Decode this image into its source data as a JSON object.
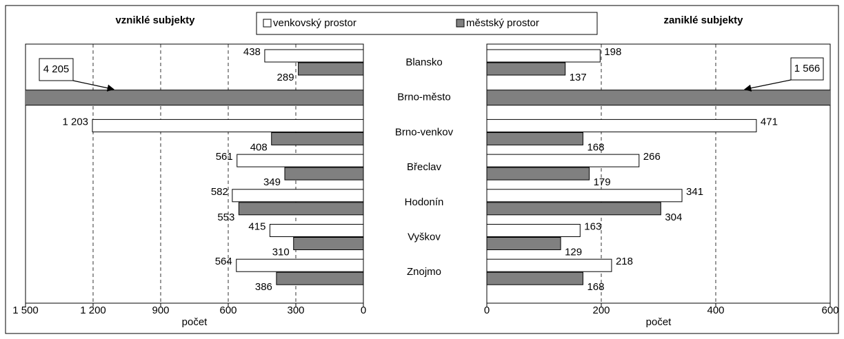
{
  "chart_data": {
    "type": "bar",
    "orientation": "horizontal",
    "categories": [
      "Blansko",
      "Brno-město",
      "Brno-venkov",
      "Břeclav",
      "Hodonín",
      "Vyškov",
      "Znojmo"
    ],
    "series": [
      {
        "name": "venkovský prostor",
        "color": "#ffffff"
      },
      {
        "name": "městský prostor",
        "color": "#808080"
      }
    ],
    "grid": true,
    "panels": [
      {
        "title": "vzniklé subjekty",
        "x_label": "počet",
        "reversed": true,
        "xlim": [
          0,
          1500
        ],
        "xticks": [
          {
            "value": 1500,
            "label": "1 500"
          },
          {
            "value": 1200,
            "label": "1 200"
          },
          900,
          600,
          300,
          0
        ],
        "values": [
          [
            438,
            null,
            1203,
            561,
            582,
            415,
            564
          ],
          [
            289,
            4205,
            408,
            349,
            553,
            310,
            386
          ]
        ],
        "value_labels": [
          [
            "438",
            null,
            "1 203",
            "561",
            "582",
            "415",
            "564"
          ],
          [
            "289",
            "4 205",
            "408",
            "349",
            "553",
            "310",
            "386"
          ]
        ]
      },
      {
        "title": "zaniklé subjekty",
        "x_label": "počet",
        "reversed": false,
        "xlim": [
          0,
          600
        ],
        "xticks": [
          0,
          200,
          400,
          600
        ],
        "values": [
          [
            198,
            null,
            471,
            266,
            341,
            163,
            218
          ],
          [
            137,
            1566,
            168,
            179,
            304,
            129,
            168
          ]
        ],
        "value_labels": [
          [
            "198",
            null,
            "471",
            "266",
            "341",
            "163",
            "218"
          ],
          [
            "137",
            "1 566",
            "168",
            "179",
            "304",
            "129",
            "168"
          ]
        ]
      }
    ]
  }
}
